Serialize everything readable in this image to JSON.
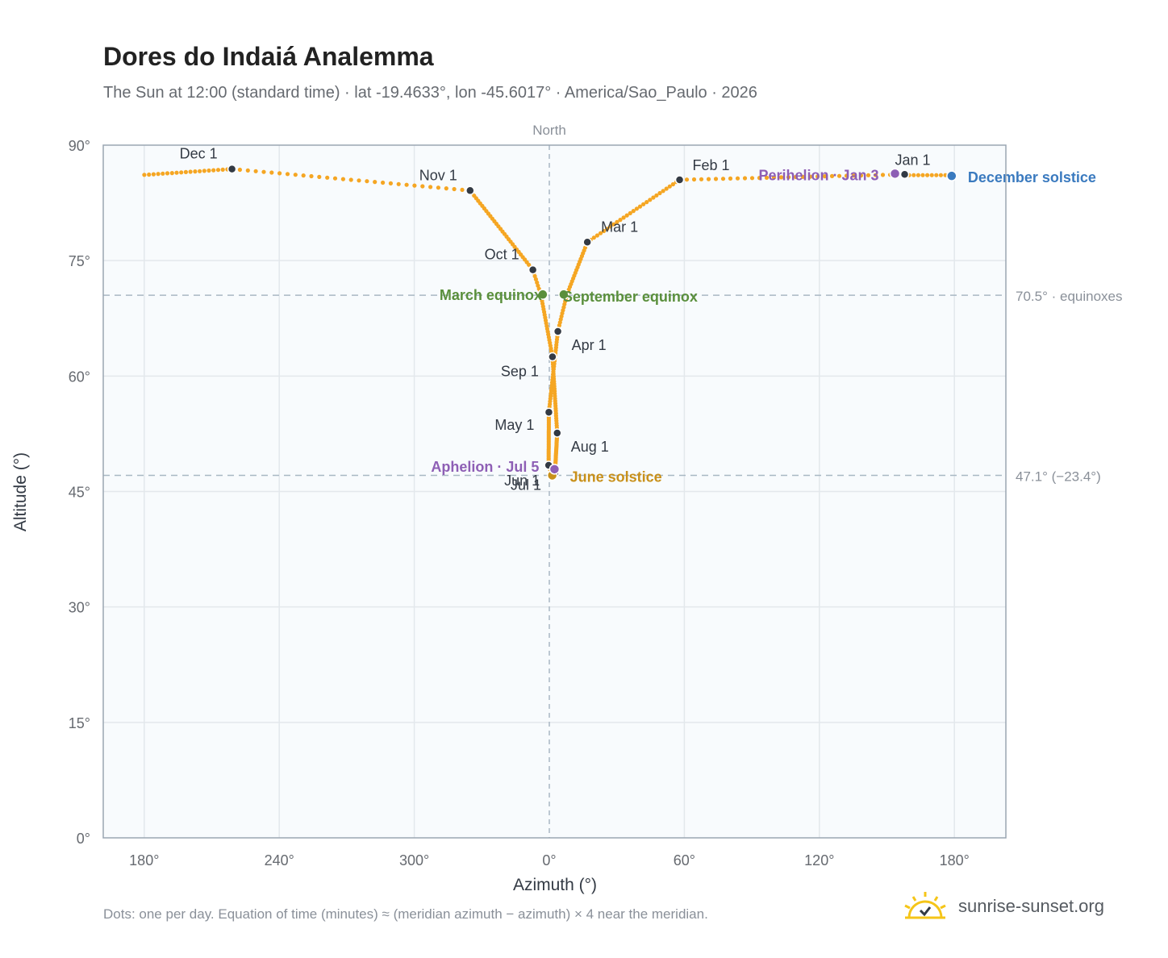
{
  "title": "Dores do Indaiá Analemma",
  "subtitle": "The Sun at 12:00 (standard time) · lat -19.4633°, lon -45.6017° · America/Sao_Paulo · 2026",
  "footnote": "Dots: one per day. Equation of time (minutes) ≈ (meridian azimuth − azimuth) × 4 near the meridian.",
  "brand": {
    "name": "sunrise-sunset.org",
    "logo_icon": "sun-check-logo-icon"
  },
  "colors": {
    "curve": "#f5a623",
    "month_marker": "#333a44",
    "equinox": "#5a8f3c",
    "june_solstice": "#c8901a",
    "december_solstice": "#3a7abf",
    "apsis": "#8e5fb5",
    "reference_line": "#a9b8c4",
    "plot_background": "#f8fbfd",
    "grid": "#e3e8ec",
    "axis_text": "#666a70"
  },
  "chart_data": {
    "type": "scatter",
    "title": "Dores do Indaiá Analemma",
    "xlabel": "Azimuth (°)",
    "ylabel": "Altitude (°)",
    "x_ticks": [
      "180°",
      "240°",
      "300°",
      "0°",
      "60°",
      "120°",
      "180°"
    ],
    "y_ticks": [
      "0°",
      "15°",
      "30°",
      "45°",
      "60°",
      "75°",
      "90°"
    ],
    "ylim": [
      0,
      90
    ],
    "xlim_note": "azimuth axis wraps: 180° (left) through 300°, 0° (North), 60°, 120° to 180° (right)",
    "north_label": "North",
    "grid": true,
    "reference_lines": [
      {
        "altitude": 70.5,
        "label": "70.5° · equinoxes"
      },
      {
        "altitude": 47.1,
        "label": "47.1° (−23.4°)"
      }
    ],
    "analemma_key_points": [
      {
        "date": "Jan 1",
        "azimuth": 157.9,
        "altitude": 86.2
      },
      {
        "date": "Feb 1",
        "azimuth": 57.9,
        "altitude": 85.5
      },
      {
        "date": "Mar 1",
        "azimuth": 16.9,
        "altitude": 77.4
      },
      {
        "date": "Mar 20",
        "azimuth": 7.7,
        "altitude": 70.5
      },
      {
        "date": "Apr 1",
        "azimuth": 3.8,
        "altitude": 65.8
      },
      {
        "date": "May 1",
        "azimuth": -0.2,
        "altitude": 55.3
      },
      {
        "date": "Jun 1",
        "azimuth": -0.3,
        "altitude": 48.4
      },
      {
        "date": "Jun 21",
        "azimuth": 1.3,
        "altitude": 47.1
      },
      {
        "date": "Jul 1",
        "azimuth": 2.5,
        "altitude": 47.4
      },
      {
        "date": "Aug 1",
        "azimuth": 3.5,
        "altitude": 52.6
      },
      {
        "date": "Sep 1",
        "azimuth": 1.4,
        "altitude": 62.5
      },
      {
        "date": "Sep 23",
        "azimuth": -3.7,
        "altitude": 70.5
      },
      {
        "date": "Oct 1",
        "azimuth": -7.3,
        "altitude": 73.8
      },
      {
        "date": "Nov 1",
        "azimuth": -35.2,
        "altitude": 84.1
      },
      {
        "date": "Dec 1",
        "azimuth": -141,
        "altitude": 86.9
      },
      {
        "date": "Dec 21",
        "azimuth": -182,
        "altitude": 86.1
      },
      {
        "date": "Dec 31",
        "azimuth": -202.1,
        "altitude": 86.1
      }
    ],
    "month_markers": [
      {
        "label": "Jan 1",
        "azimuth": 157.9,
        "altitude": 86.2,
        "lx": -12,
        "ly": -12,
        "anchor": "start"
      },
      {
        "label": "Feb 1",
        "azimuth": 57.9,
        "altitude": 85.5,
        "lx": 16,
        "ly": -12,
        "anchor": "start"
      },
      {
        "label": "Mar 1",
        "azimuth": 16.9,
        "altitude": 77.4,
        "lx": 17,
        "ly": -13,
        "anchor": "start"
      },
      {
        "label": "Apr 1",
        "azimuth": 3.8,
        "altitude": 65.8,
        "lx": 17,
        "ly": 23,
        "anchor": "start"
      },
      {
        "label": "May 1",
        "azimuth": -0.2,
        "altitude": 55.3,
        "lx": -18,
        "ly": 22,
        "anchor": "end"
      },
      {
        "label": "Jun 1",
        "azimuth": -0.3,
        "altitude": 48.4,
        "lx": -11,
        "ly": 25,
        "anchor": "end"
      },
      {
        "label": "Jul 1",
        "azimuth": 2.5,
        "altitude": 47.4,
        "lx": -17,
        "ly": 21,
        "anchor": "end"
      },
      {
        "label": "Aug 1",
        "azimuth": 3.5,
        "altitude": 52.6,
        "lx": 17,
        "ly": 23,
        "anchor": "start"
      },
      {
        "label": "Sep 1",
        "azimuth": 1.4,
        "altitude": 62.5,
        "lx": -17,
        "ly": 24,
        "anchor": "end"
      },
      {
        "label": "Oct 1",
        "azimuth": -7.3,
        "altitude": 73.8,
        "lx": -17,
        "ly": -13,
        "anchor": "end"
      },
      {
        "label": "Nov 1",
        "azimuth": -35.2,
        "altitude": 84.1,
        "lx": -16,
        "ly": -13,
        "anchor": "end"
      },
      {
        "label": "Dec 1",
        "azimuth": -141,
        "altitude": 86.9,
        "lx": -18,
        "ly": -13,
        "anchor": "end"
      }
    ],
    "events": [
      {
        "label": "March equinox",
        "azimuth": -2.9,
        "altitude": 70.6,
        "lx": -1,
        "ly": 7,
        "anchor": "end",
        "color_key": "equinox"
      },
      {
        "label": "September equinox",
        "azimuth": 6.4,
        "altitude": 70.6,
        "lx": -1,
        "ly": 9,
        "anchor": "start",
        "color_key": "equinox"
      },
      {
        "label": "June solstice",
        "azimuth": 1.3,
        "altitude": 47.1,
        "lx": 22,
        "ly": 8,
        "anchor": "start",
        "color_key": "june_solstice"
      },
      {
        "label": "December solstice",
        "azimuth": 178.8,
        "altitude": 86.0,
        "lx": 20,
        "ly": 8,
        "anchor": "start",
        "color_key": "december_solstice"
      },
      {
        "label": "Perihelion · Jan 3",
        "azimuth": 153.6,
        "altitude": 86.3,
        "lx": -20,
        "ly": 8,
        "anchor": "end",
        "color_key": "apsis"
      },
      {
        "label": "Aphelion · Jul 5",
        "azimuth": 2.3,
        "altitude": 47.9,
        "lx": -19,
        "ly": 3,
        "anchor": "end",
        "color_key": "apsis"
      }
    ]
  }
}
